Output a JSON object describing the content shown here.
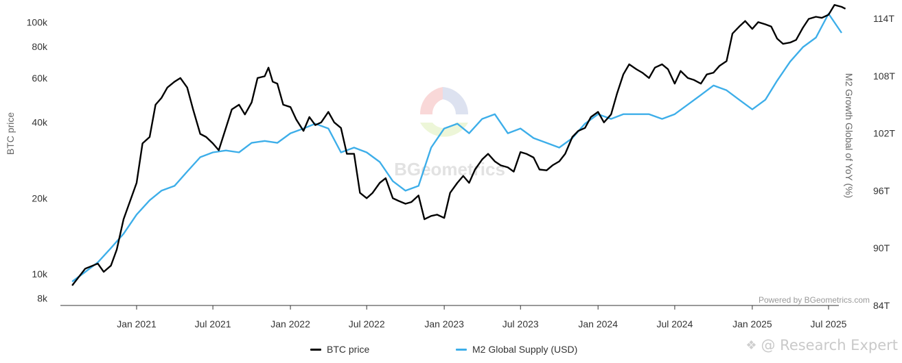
{
  "chart_data": {
    "type": "line",
    "watermark_text": "BGeometrics",
    "credit": "Powered by BGeometrics.com",
    "corner_watermark": "@ Research Expert",
    "x_ticks": [
      "Jan 2021",
      "Jul 2021",
      "Jan 2022",
      "Jul 2022",
      "Jan 2023",
      "Jul 2023",
      "Jan 2024",
      "Jul 2024",
      "Jan 2025",
      "Jul 2025"
    ],
    "y_left": {
      "label": "BTC price",
      "scale": "log",
      "range": [
        7500,
        115000
      ],
      "ticks": [
        {
          "value": 8000,
          "label": "8k"
        },
        {
          "value": 10000,
          "label": "10k"
        },
        {
          "value": 20000,
          "label": "20k"
        },
        {
          "value": 40000,
          "label": "40k"
        },
        {
          "value": 60000,
          "label": "60k"
        },
        {
          "value": 80000,
          "label": "80k"
        },
        {
          "value": 100000,
          "label": "100k"
        }
      ]
    },
    "y_right": {
      "label": "M2 Growth Global of YoY (%)",
      "scale": "linear",
      "range": [
        84,
        114
      ],
      "ticks": [
        {
          "value": 84,
          "label": "84T"
        },
        {
          "value": 90,
          "label": "90T"
        },
        {
          "value": 96,
          "label": "96T"
        },
        {
          "value": 102,
          "label": "102T"
        },
        {
          "value": 108,
          "label": "108T"
        },
        {
          "value": 114,
          "label": "114T"
        }
      ]
    },
    "series": [
      {
        "name": "BTC price",
        "axis": "left",
        "color": "#000000",
        "points": [
          [
            "2020-08-01",
            9000
          ],
          [
            "2020-09-01",
            10500
          ],
          [
            "2020-10-01",
            11000
          ],
          [
            "2020-10-15",
            10200
          ],
          [
            "2020-11-01",
            10800
          ],
          [
            "2020-11-15",
            12500
          ],
          [
            "2020-12-01",
            16500
          ],
          [
            "2021-01-01",
            23000
          ],
          [
            "2021-01-15",
            33000
          ],
          [
            "2021-02-01",
            35000
          ],
          [
            "2021-02-15",
            47000
          ],
          [
            "2021-03-01",
            50000
          ],
          [
            "2021-03-15",
            55000
          ],
          [
            "2021-04-01",
            58000
          ],
          [
            "2021-04-15",
            60000
          ],
          [
            "2021-05-01",
            55000
          ],
          [
            "2021-05-15",
            45000
          ],
          [
            "2021-06-01",
            36000
          ],
          [
            "2021-06-15",
            35000
          ],
          [
            "2021-07-01",
            33000
          ],
          [
            "2021-07-15",
            31000
          ],
          [
            "2021-08-01",
            38000
          ],
          [
            "2021-08-15",
            45000
          ],
          [
            "2021-09-01",
            47000
          ],
          [
            "2021-09-15",
            43000
          ],
          [
            "2021-10-01",
            48000
          ],
          [
            "2021-10-15",
            60000
          ],
          [
            "2021-11-01",
            61000
          ],
          [
            "2021-11-10",
            66000
          ],
          [
            "2021-11-20",
            58000
          ],
          [
            "2021-12-01",
            57000
          ],
          [
            "2021-12-15",
            47000
          ],
          [
            "2022-01-01",
            46000
          ],
          [
            "2022-01-15",
            41000
          ],
          [
            "2022-02-01",
            37000
          ],
          [
            "2022-02-15",
            42000
          ],
          [
            "2022-03-01",
            39000
          ],
          [
            "2022-03-15",
            40000
          ],
          [
            "2022-04-01",
            44000
          ],
          [
            "2022-04-15",
            40000
          ],
          [
            "2022-05-01",
            38000
          ],
          [
            "2022-05-15",
            30000
          ],
          [
            "2022-06-01",
            30000
          ],
          [
            "2022-06-15",
            21000
          ],
          [
            "2022-07-01",
            20000
          ],
          [
            "2022-07-15",
            21000
          ],
          [
            "2022-08-01",
            23000
          ],
          [
            "2022-08-15",
            24000
          ],
          [
            "2022-09-01",
            20000
          ],
          [
            "2022-09-15",
            19500
          ],
          [
            "2022-10-01",
            19000
          ],
          [
            "2022-10-15",
            19300
          ],
          [
            "2022-11-01",
            20500
          ],
          [
            "2022-11-15",
            16500
          ],
          [
            "2022-12-01",
            17000
          ],
          [
            "2022-12-15",
            17200
          ],
          [
            "2023-01-01",
            16700
          ],
          [
            "2023-01-15",
            21000
          ],
          [
            "2023-02-01",
            23000
          ],
          [
            "2023-02-15",
            24500
          ],
          [
            "2023-03-01",
            23000
          ],
          [
            "2023-03-15",
            26000
          ],
          [
            "2023-04-01",
            28500
          ],
          [
            "2023-04-15",
            30000
          ],
          [
            "2023-05-01",
            28000
          ],
          [
            "2023-05-15",
            27000
          ],
          [
            "2023-06-01",
            26500
          ],
          [
            "2023-06-15",
            25500
          ],
          [
            "2023-07-01",
            30500
          ],
          [
            "2023-07-15",
            30000
          ],
          [
            "2023-08-01",
            29000
          ],
          [
            "2023-08-15",
            26000
          ],
          [
            "2023-09-01",
            25800
          ],
          [
            "2023-09-15",
            27000
          ],
          [
            "2023-10-01",
            28000
          ],
          [
            "2023-10-15",
            30000
          ],
          [
            "2023-11-01",
            35000
          ],
          [
            "2023-11-15",
            37000
          ],
          [
            "2023-12-01",
            38000
          ],
          [
            "2023-12-15",
            42000
          ],
          [
            "2024-01-01",
            44000
          ],
          [
            "2024-01-15",
            40000
          ],
          [
            "2024-02-01",
            43000
          ],
          [
            "2024-02-15",
            52000
          ],
          [
            "2024-03-01",
            62000
          ],
          [
            "2024-03-15",
            68000
          ],
          [
            "2024-04-01",
            65000
          ],
          [
            "2024-04-15",
            63000
          ],
          [
            "2024-05-01",
            60000
          ],
          [
            "2024-05-15",
            66000
          ],
          [
            "2024-06-01",
            68000
          ],
          [
            "2024-06-15",
            65000
          ],
          [
            "2024-07-01",
            57000
          ],
          [
            "2024-07-15",
            64000
          ],
          [
            "2024-08-01",
            60000
          ],
          [
            "2024-08-15",
            59000
          ],
          [
            "2024-09-01",
            57000
          ],
          [
            "2024-09-15",
            62000
          ],
          [
            "2024-10-01",
            63000
          ],
          [
            "2024-10-15",
            67000
          ],
          [
            "2024-11-01",
            70000
          ],
          [
            "2024-11-15",
            90000
          ],
          [
            "2024-12-01",
            96000
          ],
          [
            "2024-12-15",
            101000
          ],
          [
            "2025-01-01",
            94000
          ],
          [
            "2025-01-15",
            100000
          ],
          [
            "2025-02-01",
            98000
          ],
          [
            "2025-02-15",
            96000
          ],
          [
            "2025-03-01",
            86000
          ],
          [
            "2025-03-15",
            82000
          ],
          [
            "2025-04-01",
            83000
          ],
          [
            "2025-04-15",
            85000
          ],
          [
            "2025-05-01",
            95000
          ],
          [
            "2025-05-15",
            103000
          ],
          [
            "2025-06-01",
            105000
          ],
          [
            "2025-06-15",
            104000
          ],
          [
            "2025-07-01",
            107000
          ],
          [
            "2025-07-15",
            117000
          ],
          [
            "2025-08-01",
            115000
          ],
          [
            "2025-08-10",
            113000
          ]
        ]
      },
      {
        "name": "M2 Global Supply (USD)",
        "axis": "right",
        "color": "#3daee9",
        "points": [
          [
            "2020-08-01",
            86.5
          ],
          [
            "2020-09-01",
            87.5
          ],
          [
            "2020-10-01",
            88.5
          ],
          [
            "2020-11-01",
            90.0
          ],
          [
            "2020-12-01",
            91.5
          ],
          [
            "2021-01-01",
            93.5
          ],
          [
            "2021-02-01",
            95.0
          ],
          [
            "2021-03-01",
            96.0
          ],
          [
            "2021-04-01",
            96.5
          ],
          [
            "2021-05-01",
            98.0
          ],
          [
            "2021-06-01",
            99.5
          ],
          [
            "2021-07-01",
            100.0
          ],
          [
            "2021-08-01",
            100.2
          ],
          [
            "2021-09-01",
            100.0
          ],
          [
            "2021-10-01",
            101.0
          ],
          [
            "2021-11-01",
            101.2
          ],
          [
            "2021-12-01",
            101.0
          ],
          [
            "2022-01-01",
            102.0
          ],
          [
            "2022-02-01",
            102.5
          ],
          [
            "2022-03-01",
            103.0
          ],
          [
            "2022-04-01",
            102.5
          ],
          [
            "2022-05-01",
            100.0
          ],
          [
            "2022-06-01",
            100.5
          ],
          [
            "2022-07-01",
            100.0
          ],
          [
            "2022-08-01",
            99.0
          ],
          [
            "2022-09-01",
            97.0
          ],
          [
            "2022-10-01",
            96.0
          ],
          [
            "2022-11-01",
            96.5
          ],
          [
            "2022-12-01",
            100.5
          ],
          [
            "2023-01-01",
            102.5
          ],
          [
            "2023-02-01",
            103.0
          ],
          [
            "2023-03-01",
            102.0
          ],
          [
            "2023-04-01",
            103.5
          ],
          [
            "2023-05-01",
            104.0
          ],
          [
            "2023-06-01",
            102.0
          ],
          [
            "2023-07-01",
            102.5
          ],
          [
            "2023-08-01",
            101.5
          ],
          [
            "2023-09-01",
            101.0
          ],
          [
            "2023-10-01",
            100.5
          ],
          [
            "2023-11-01",
            101.5
          ],
          [
            "2023-12-01",
            103.0
          ],
          [
            "2024-01-01",
            104.0
          ],
          [
            "2024-02-01",
            103.5
          ],
          [
            "2024-03-01",
            104.0
          ],
          [
            "2024-04-01",
            104.0
          ],
          [
            "2024-05-01",
            104.0
          ],
          [
            "2024-06-01",
            103.5
          ],
          [
            "2024-07-01",
            104.0
          ],
          [
            "2024-08-01",
            105.0
          ],
          [
            "2024-09-01",
            106.0
          ],
          [
            "2024-10-01",
            107.0
          ],
          [
            "2024-11-01",
            106.5
          ],
          [
            "2024-12-01",
            105.5
          ],
          [
            "2025-01-01",
            104.5
          ],
          [
            "2025-02-01",
            105.5
          ],
          [
            "2025-03-01",
            107.5
          ],
          [
            "2025-04-01",
            109.5
          ],
          [
            "2025-05-01",
            111.0
          ],
          [
            "2025-06-01",
            112.0
          ],
          [
            "2025-07-01",
            114.5
          ],
          [
            "2025-08-01",
            112.5
          ]
        ]
      }
    ]
  },
  "legend": {
    "btc_label": "BTC price",
    "m2_label": "M2 Global Supply (USD)"
  }
}
